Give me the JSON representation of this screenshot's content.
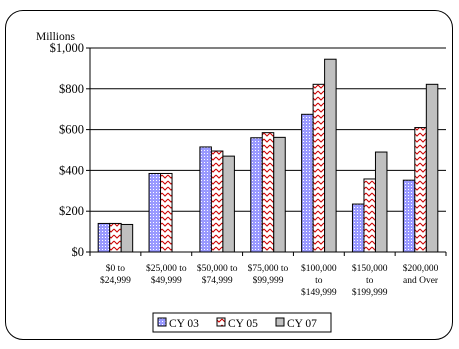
{
  "chart_data": {
    "type": "bar",
    "unit_label": "Millions",
    "categories": [
      [
        "$0 to",
        "$24,999"
      ],
      [
        "$25,000 to",
        "$49,999"
      ],
      [
        "$50,000 to",
        "$74,999"
      ],
      [
        "$75,000 to",
        "$99,999"
      ],
      [
        "$100,000",
        "to",
        "$149,999"
      ],
      [
        "$150,000",
        "to",
        "$199,999"
      ],
      [
        "$200,000",
        "and Over"
      ]
    ],
    "series": [
      {
        "name": "CY 03",
        "values": [
          140,
          385,
          515,
          560,
          675,
          235,
          352
        ],
        "color": "#9999ff",
        "pattern": "dots"
      },
      {
        "name": "CY 05",
        "values": [
          140,
          385,
          495,
          585,
          822,
          358,
          610
        ],
        "color": "#ffffff",
        "pattern": "red-zigzag"
      },
      {
        "name": "CY 07",
        "values": [
          135,
          0,
          470,
          562,
          945,
          490,
          822
        ],
        "color": "#c0c0c0",
        "pattern": "solid"
      }
    ],
    "yticks": [
      "$0",
      "$200",
      "$400",
      "$600",
      "$800",
      "$1,000"
    ],
    "ylim": [
      0,
      1000
    ],
    "grid": true,
    "legend": "bottom"
  }
}
